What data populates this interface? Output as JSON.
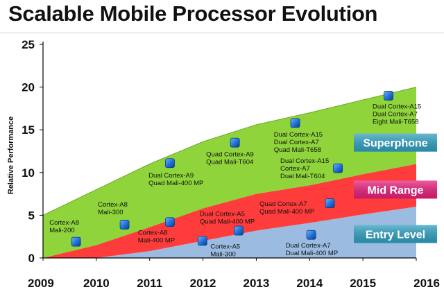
{
  "title": "Scalable Mobile Processor Evolution",
  "chart_data": {
    "type": "area",
    "title": "Scalable Mobile Processor Evolution",
    "xlabel": "",
    "ylabel": "Relative Performance",
    "xlim": [
      2009,
      2016
    ],
    "ylim": [
      0,
      25
    ],
    "x_ticks": [
      2009,
      2010,
      2011,
      2012,
      2013,
      2014,
      2015,
      2016
    ],
    "y_ticks": [
      0,
      5,
      10,
      15,
      20,
      25
    ],
    "grid": false,
    "series": [
      {
        "name": "Entry Level",
        "color": "#9bbbe0",
        "tier_color": "#2f9fbf",
        "x": [
          2009,
          2010,
          2011,
          2012,
          2013,
          2014,
          2015,
          2016
        ],
        "values": [
          0,
          0,
          0.8,
          2.0,
          3.2,
          4.1,
          5.1,
          6.0
        ]
      },
      {
        "name": "Mid Range",
        "color": "#ff3c3c",
        "tier_color": "#e61e78",
        "x": [
          2009,
          2010,
          2011,
          2012,
          2013,
          2014,
          2015,
          2016
        ],
        "values": [
          0,
          1.5,
          3.6,
          5.8,
          7.5,
          8.5,
          9.8,
          11.0
        ]
      },
      {
        "name": "Superphone",
        "color": "#8ed43a",
        "tier_color": "#2f9fbf",
        "x": [
          2009,
          2010,
          2011,
          2012,
          2013,
          2014,
          2015,
          2016
        ],
        "values": [
          5.0,
          8.0,
          11.0,
          13.6,
          15.6,
          17.0,
          18.5,
          20.0
        ]
      }
    ],
    "points": [
      {
        "x": 2009.62,
        "y": 1.9,
        "label": [
          "Cortex-A8",
          "Mali-200"
        ],
        "label_x": 2009.12,
        "label_y": 3.9
      },
      {
        "x": 2010.53,
        "y": 3.9,
        "label": [
          "Cortex-A8",
          "Mali-300"
        ],
        "label_x": 2010.03,
        "label_y": 6.0
      },
      {
        "x": 2011.38,
        "y": 4.2,
        "label": [
          "Cortex-A8",
          "Mali-400 MP"
        ],
        "label_x": 2010.78,
        "label_y": 2.7
      },
      {
        "x": 2011.38,
        "y": 11.1,
        "label": [
          "Dual Cortex-A9",
          "Quad Mali-400 MP"
        ],
        "label_x": 2010.98,
        "label_y": 9.4
      },
      {
        "x": 2011.99,
        "y": 2.0,
        "label": [
          "Cortex-A5",
          "Mali-300"
        ],
        "label_x": 2012.14,
        "label_y": 1.1
      },
      {
        "x": 2012.67,
        "y": 3.2,
        "label": [
          "Dual Cortex-A5",
          "Quad Mali-400 MP"
        ],
        "label_x": 2011.94,
        "label_y": 4.9
      },
      {
        "x": 2012.6,
        "y": 13.5,
        "label": [
          "Quad Cortex-A9",
          "Quad Mali-T604"
        ],
        "label_x": 2012.06,
        "label_y": 11.9
      },
      {
        "x": 2013.73,
        "y": 15.8,
        "label": [
          "Dual Cortex-A15",
          "Dual Cortex-A7",
          "Quad Mali-T658"
        ],
        "label_x": 2013.33,
        "label_y": 14.2
      },
      {
        "x": 2014.53,
        "y": 10.5,
        "label": [
          "Dual Cortex-A15",
          "Cortex-A7",
          "Dual Mali-T604"
        ],
        "label_x": 2013.45,
        "label_y": 11.1
      },
      {
        "x": 2014.38,
        "y": 6.4,
        "label": [
          "Quad Cortex-A7",
          "Quad Mali-400 MP"
        ],
        "label_x": 2013.06,
        "label_y": 6.1
      },
      {
        "x": 2014.03,
        "y": 2.7,
        "label": [
          "Dual Cortex-A7",
          "Dual Mali-400 MP"
        ],
        "label_x": 2013.55,
        "label_y": 1.2
      },
      {
        "x": 2015.48,
        "y": 19.0,
        "label": [
          "Dual Cortex-A15",
          "Dual Cortex-A7",
          "Eight Mali-T658"
        ],
        "label_x": 2015.18,
        "label_y": 17.5
      }
    ],
    "tiers": [
      {
        "name": "Superphone",
        "color": "#2f9fbf",
        "at_y": 13.5
      },
      {
        "name": "Mid Range",
        "color": "#e61e78",
        "at_y": 8.0
      },
      {
        "name": "Entry Level",
        "color": "#2f9fbf",
        "at_y": 2.8
      }
    ]
  }
}
